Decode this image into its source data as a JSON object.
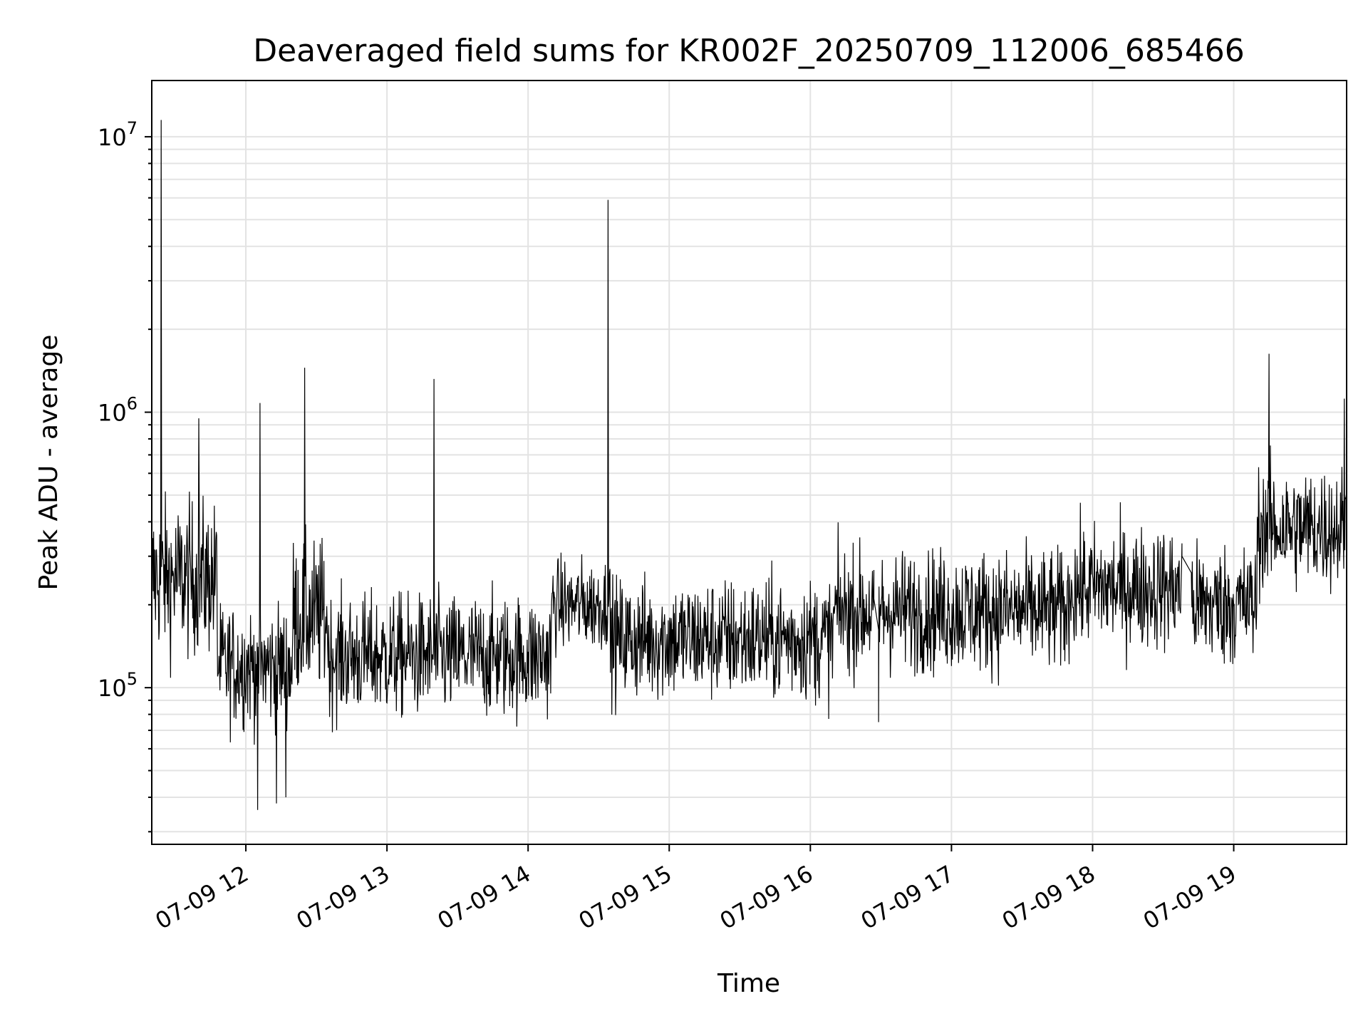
{
  "chart_data": {
    "type": "line",
    "title": "Deaveraged field sums for KR002F_20250709_112006_685466",
    "xlabel": "Time",
    "ylabel": "Peak ADU - average",
    "y_scale": "log",
    "ylim": [
      27000,
      16000000
    ],
    "xlim": [
      "2025-07-09 11:20",
      "2025-07-09 19:48"
    ],
    "grid": true,
    "x_ticks": [
      {
        "t": "2025-07-09 12:00",
        "label": "07-09 12"
      },
      {
        "t": "2025-07-09 13:00",
        "label": "07-09 13"
      },
      {
        "t": "2025-07-09 14:00",
        "label": "07-09 14"
      },
      {
        "t": "2025-07-09 15:00",
        "label": "07-09 15"
      },
      {
        "t": "2025-07-09 16:00",
        "label": "07-09 16"
      },
      {
        "t": "2025-07-09 17:00",
        "label": "07-09 17"
      },
      {
        "t": "2025-07-09 18:00",
        "label": "07-09 18"
      },
      {
        "t": "2025-07-09 19:00",
        "label": "07-09 19"
      }
    ],
    "y_ticks": [
      {
        "value": 100000,
        "base": "10",
        "exp": "5"
      },
      {
        "value": 1000000,
        "base": "10",
        "exp": "6"
      },
      {
        "value": 10000000,
        "base": "10",
        "exp": "7"
      }
    ],
    "series": [
      {
        "color": "#000000",
        "segments": [
          {
            "t_start": "2025-07-09 11:20",
            "t_end": "2025-07-09 11:48",
            "median": 250000,
            "spread_decades": 0.25
          },
          {
            "t_start": "2025-07-09 11:48",
            "t_end": "2025-07-09 12:20",
            "median": 120000,
            "spread_decades": 0.2
          },
          {
            "t_start": "2025-07-09 12:20",
            "t_end": "2025-07-09 12:35",
            "median": 180000,
            "spread_decades": 0.25
          },
          {
            "t_start": "2025-07-09 12:35",
            "t_end": "2025-07-09 14:10",
            "median": 130000,
            "spread_decades": 0.2
          },
          {
            "t_start": "2025-07-09 14:10",
            "t_end": "2025-07-09 14:35",
            "median": 200000,
            "spread_decades": 0.15
          },
          {
            "t_start": "2025-07-09 14:35",
            "t_end": "2025-07-09 16:10",
            "median": 150000,
            "spread_decades": 0.2
          },
          {
            "t_start": "2025-07-09 16:10",
            "t_end": "2025-07-09 17:50",
            "median": 190000,
            "spread_decades": 0.2
          },
          {
            "t_start": "2025-07-09 17:50",
            "t_end": "2025-07-09 18:40",
            "median": 230000,
            "spread_decades": 0.2
          },
          {
            "t_start": "2025-07-09 18:40",
            "t_end": "2025-07-09 19:10",
            "median": 200000,
            "spread_decades": 0.2
          },
          {
            "t_start": "2025-07-09 19:10",
            "t_end": "2025-07-09 19:48",
            "median": 380000,
            "spread_decades": 0.2
          }
        ],
        "peaks": [
          {
            "t": "2025-07-09 11:24",
            "value": 11500000
          },
          {
            "t": "2025-07-09 11:40",
            "value": 950000
          },
          {
            "t": "2025-07-09 12:06",
            "value": 1080000
          },
          {
            "t": "2025-07-09 12:25",
            "value": 1450000
          },
          {
            "t": "2025-07-09 13:20",
            "value": 1320000
          },
          {
            "t": "2025-07-09 14:34",
            "value": 5900000
          },
          {
            "t": "2025-07-09 19:15",
            "value": 1630000
          },
          {
            "t": "2025-07-09 19:47",
            "value": 1120000
          },
          {
            "t": "2025-07-09 12:05",
            "value": 36000
          },
          {
            "t": "2025-07-09 12:13",
            "value": 38000
          },
          {
            "t": "2025-07-09 12:17",
            "value": 40000
          }
        ],
        "gaps": [
          {
            "t_start": "2025-07-09 16:27",
            "t_end": "2025-07-09 16:29",
            "values": [
              210000,
              75000
            ]
          },
          {
            "t_start": "2025-07-09 18:38",
            "t_end": "2025-07-09 18:42",
            "values": [
              300000,
              250000
            ]
          }
        ]
      }
    ]
  }
}
